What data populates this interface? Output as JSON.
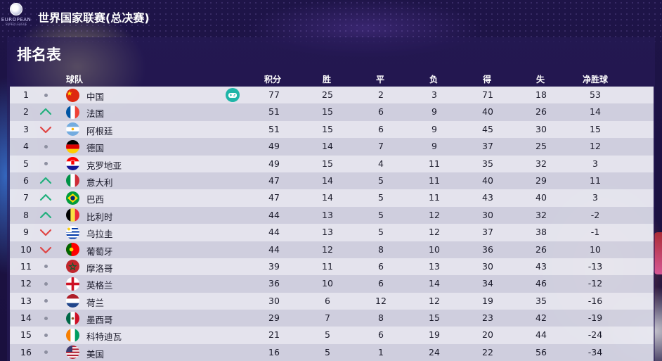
{
  "header": {
    "title": "世界国家联赛(总决赛)",
    "logo_text": "EUROPEAN",
    "logo_subtext": "SUPER LEAGUE"
  },
  "panel": {
    "title": "排名表"
  },
  "columns": {
    "team": "球队",
    "points": "积分",
    "wins": "胜",
    "draws": "平",
    "losses": "负",
    "goals_for": "得",
    "goals_against": "失",
    "goal_diff": "净胜球"
  },
  "colors": {
    "up": "#22b07d",
    "down": "#e04545",
    "same": "#8d8fa0",
    "controller": "#1fb5a8"
  },
  "standings": [
    {
      "rank": "1",
      "trend": "same",
      "flag": "china",
      "team": "中国",
      "user": true,
      "pts": "77",
      "w": "25",
      "d": "2",
      "l": "3",
      "gf": "71",
      "ga": "18",
      "gd": "53"
    },
    {
      "rank": "2",
      "trend": "up",
      "flag": "france",
      "team": "法国",
      "pts": "51",
      "w": "15",
      "d": "6",
      "l": "9",
      "gf": "40",
      "ga": "26",
      "gd": "14"
    },
    {
      "rank": "3",
      "trend": "down",
      "flag": "argentina",
      "team": "阿根廷",
      "pts": "51",
      "w": "15",
      "d": "6",
      "l": "9",
      "gf": "45",
      "ga": "30",
      "gd": "15"
    },
    {
      "rank": "4",
      "trend": "same",
      "flag": "germany",
      "team": "德国",
      "pts": "49",
      "w": "14",
      "d": "7",
      "l": "9",
      "gf": "37",
      "ga": "25",
      "gd": "12"
    },
    {
      "rank": "5",
      "trend": "same",
      "flag": "croatia",
      "team": "克罗地亚",
      "pts": "49",
      "w": "15",
      "d": "4",
      "l": "11",
      "gf": "35",
      "ga": "32",
      "gd": "3"
    },
    {
      "rank": "6",
      "trend": "up",
      "flag": "italy",
      "team": "意大利",
      "pts": "47",
      "w": "14",
      "d": "5",
      "l": "11",
      "gf": "40",
      "ga": "29",
      "gd": "11"
    },
    {
      "rank": "7",
      "trend": "up",
      "flag": "brazil",
      "team": "巴西",
      "pts": "47",
      "w": "14",
      "d": "5",
      "l": "11",
      "gf": "43",
      "ga": "40",
      "gd": "3"
    },
    {
      "rank": "8",
      "trend": "up",
      "flag": "belgium",
      "team": "比利时",
      "pts": "44",
      "w": "13",
      "d": "5",
      "l": "12",
      "gf": "30",
      "ga": "32",
      "gd": "-2"
    },
    {
      "rank": "9",
      "trend": "down",
      "flag": "uruguay",
      "team": "乌拉圭",
      "pts": "44",
      "w": "13",
      "d": "5",
      "l": "12",
      "gf": "37",
      "ga": "38",
      "gd": "-1"
    },
    {
      "rank": "10",
      "trend": "down",
      "flag": "portugal",
      "team": "葡萄牙",
      "pts": "44",
      "w": "12",
      "d": "8",
      "l": "10",
      "gf": "36",
      "ga": "26",
      "gd": "10"
    },
    {
      "rank": "11",
      "trend": "same",
      "flag": "morocco",
      "team": "摩洛哥",
      "pts": "39",
      "w": "11",
      "d": "6",
      "l": "13",
      "gf": "30",
      "ga": "43",
      "gd": "-13"
    },
    {
      "rank": "12",
      "trend": "same",
      "flag": "england",
      "team": "英格兰",
      "pts": "36",
      "w": "10",
      "d": "6",
      "l": "14",
      "gf": "34",
      "ga": "46",
      "gd": "-12"
    },
    {
      "rank": "13",
      "trend": "same",
      "flag": "netherlands",
      "team": "荷兰",
      "pts": "30",
      "w": "6",
      "d": "12",
      "l": "12",
      "gf": "19",
      "ga": "35",
      "gd": "-16"
    },
    {
      "rank": "14",
      "trend": "same",
      "flag": "mexico",
      "team": "墨西哥",
      "pts": "29",
      "w": "7",
      "d": "8",
      "l": "15",
      "gf": "23",
      "ga": "42",
      "gd": "-19"
    },
    {
      "rank": "15",
      "trend": "same",
      "flag": "ireland",
      "team": "科特迪瓦",
      "pts": "21",
      "w": "5",
      "d": "6",
      "l": "19",
      "gf": "20",
      "ga": "44",
      "gd": "-24"
    },
    {
      "rank": "16",
      "trend": "same",
      "flag": "usa",
      "team": "美国",
      "pts": "16",
      "w": "5",
      "d": "1",
      "l": "24",
      "gf": "22",
      "ga": "56",
      "gd": "-34"
    }
  ]
}
